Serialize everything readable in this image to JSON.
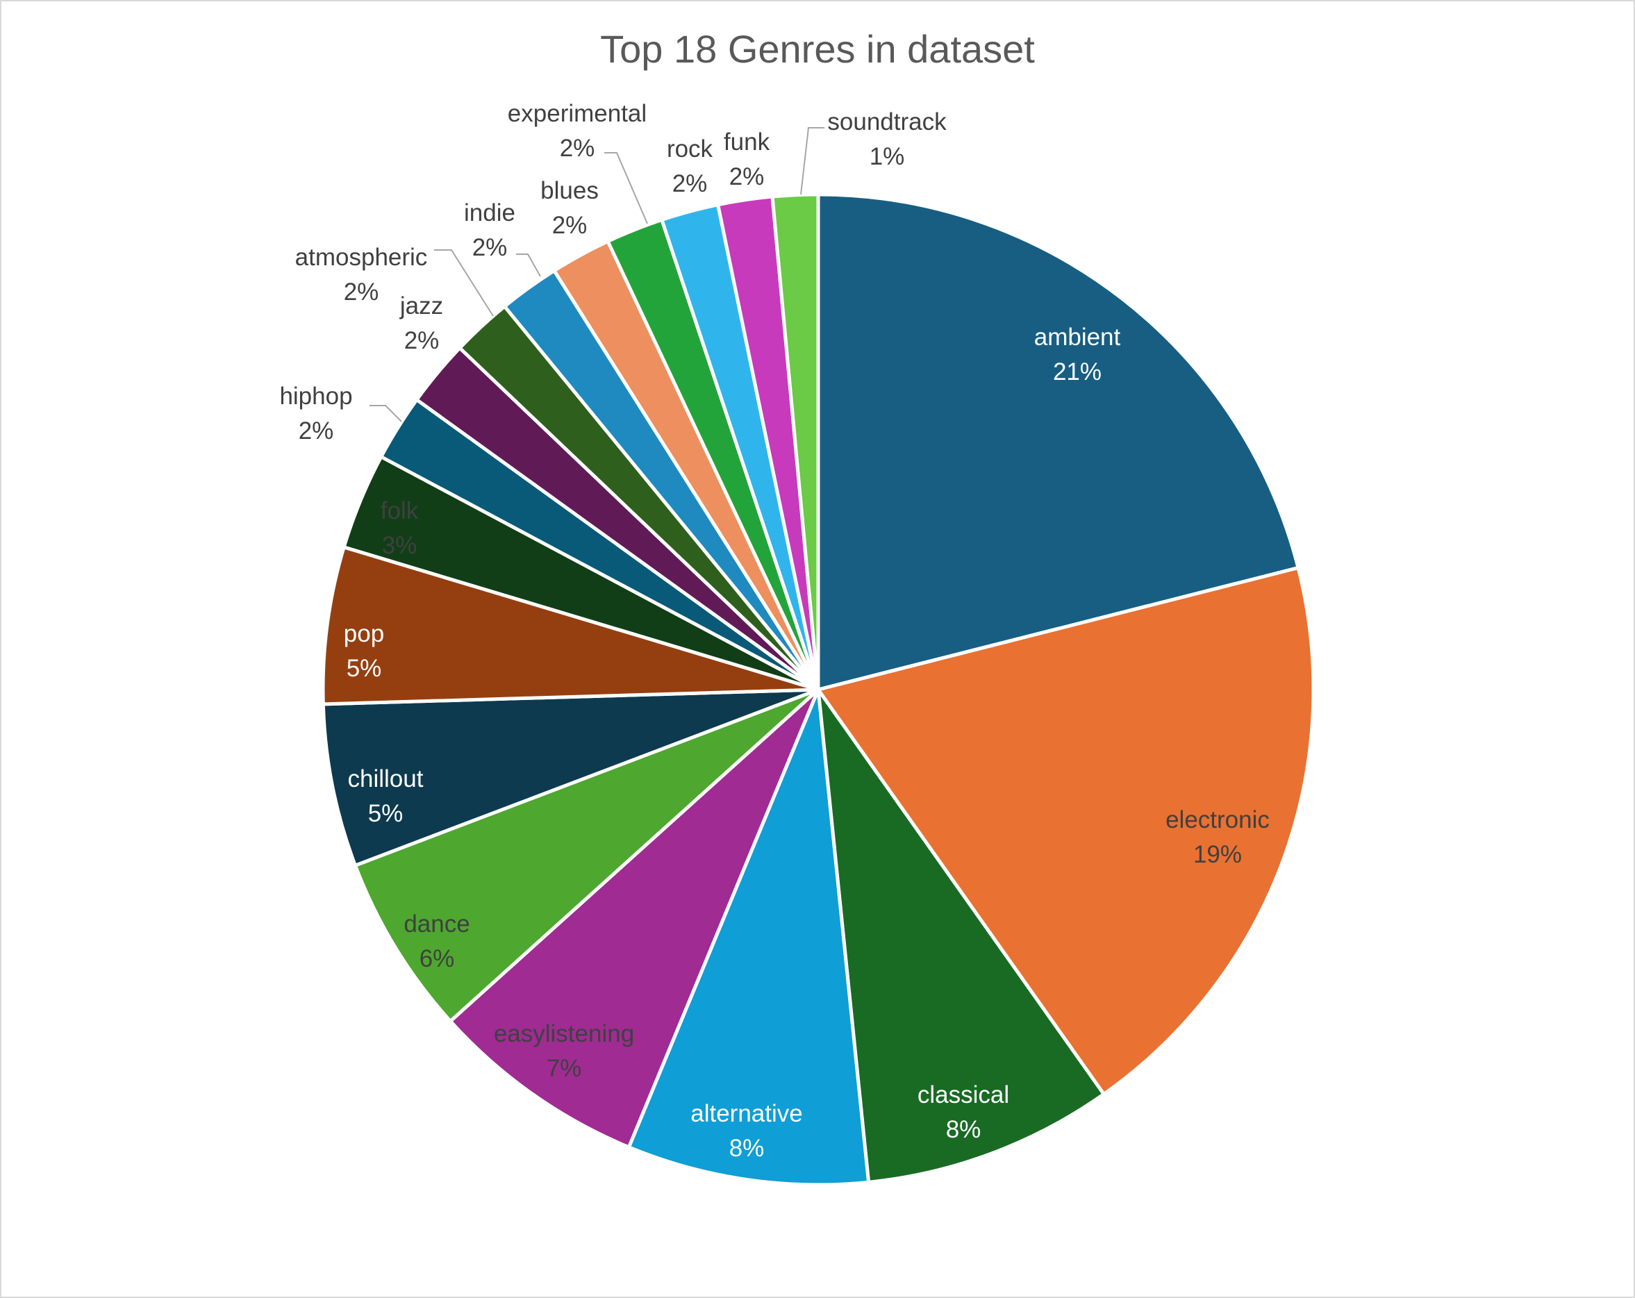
{
  "chart_data": {
    "type": "pie",
    "title": "Top 18 Genres in dataset",
    "slices": [
      {
        "label": "ambient",
        "value": 21,
        "display": "21%",
        "color": "#175e82"
      },
      {
        "label": "electronic",
        "value": 19,
        "display": "19%",
        "color": "#e97132"
      },
      {
        "label": "classical",
        "value": 8,
        "display": "8%",
        "color": "#196b24"
      },
      {
        "label": "alternative",
        "value": 8,
        "display": "8%",
        "color": "#0f9ed5"
      },
      {
        "label": "easylistening",
        "value": 7,
        "display": "7%",
        "color": "#a02b93"
      },
      {
        "label": "dance",
        "value": 6,
        "display": "6%",
        "color": "#4ea72e"
      },
      {
        "label": "chillout",
        "value": 5,
        "display": "5%",
        "color": "#0d3a4e"
      },
      {
        "label": "pop",
        "value": 5,
        "display": "5%",
        "color": "#953f11"
      },
      {
        "label": "folk",
        "value": 3,
        "display": "3%",
        "color": "#113e17"
      },
      {
        "label": "hiphop",
        "value": 2,
        "display": "2%",
        "color": "#095a78"
      },
      {
        "label": "jazz",
        "value": 2,
        "display": "2%",
        "color": "#601a55"
      },
      {
        "label": "atmospheric",
        "value": 2,
        "display": "2%",
        "color": "#2f5f1c"
      },
      {
        "label": "indie",
        "value": 2,
        "display": "2%",
        "color": "#1f8ac0"
      },
      {
        "label": "blues",
        "value": 2,
        "display": "2%",
        "color": "#ed8f5e"
      },
      {
        "label": "experimental",
        "value": 2,
        "display": "2%",
        "color": "#23a43a"
      },
      {
        "label": "rock",
        "value": 2,
        "display": "2%",
        "color": "#2fb5ec"
      },
      {
        "label": "funk",
        "value": 2,
        "display": "2%",
        "color": "#c83abc"
      },
      {
        "label": "soundtrack",
        "value": 1,
        "display": "1%",
        "color": "#6bca46"
      }
    ],
    "legend": "none",
    "label_style": "category name and percentage"
  }
}
